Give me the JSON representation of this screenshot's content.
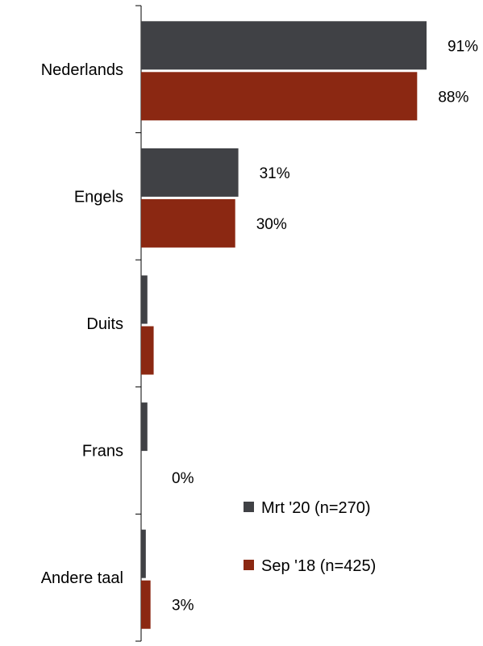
{
  "chart_data": {
    "type": "bar",
    "orientation": "horizontal",
    "categories": [
      "Nederlands",
      "Engels",
      "Duits",
      "Frans",
      "Andere taal"
    ],
    "series": [
      {
        "name": "Mrt '20 (n=270)",
        "color": "#404145",
        "values": [
          91,
          31,
          2,
          2,
          1.5
        ],
        "labels": [
          "91%",
          "31%",
          "",
          "",
          ""
        ]
      },
      {
        "name": "Sep '18 (n=425)",
        "color": "#8B2812",
        "values": [
          88,
          30,
          4,
          0,
          3
        ],
        "labels": [
          "88%",
          "30%",
          "",
          "0%",
          "3%"
        ]
      }
    ],
    "xlim": [
      0,
      100
    ],
    "value_unit": "%",
    "grid": false,
    "legend_position": "bottom-right"
  }
}
